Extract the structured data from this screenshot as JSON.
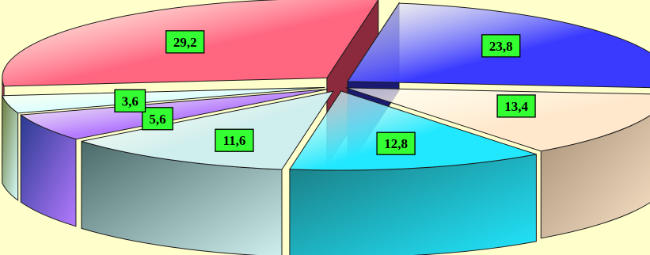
{
  "chart_data": {
    "type": "pie",
    "title": "",
    "style": "3d-exploded",
    "background": "#ffffcc",
    "label_background": "#33ff33",
    "slices": [
      {
        "label": "29,2",
        "value": 29.2,
        "color": "#ff6680",
        "side_color": "#8a2a3c"
      },
      {
        "label": "23,8",
        "value": 23.8,
        "color": "#3a3aff",
        "side_color": "#1a1a70"
      },
      {
        "label": "13,4",
        "value": 13.4,
        "color": "#ffe8cc",
        "side_color": "#a08a70"
      },
      {
        "label": "12,8",
        "value": 12.8,
        "color": "#22e8ff",
        "side_color": "#1a7a80"
      },
      {
        "label": "11,6",
        "value": 11.6,
        "color": "#cfeeee",
        "side_color": "#4a6a6a"
      },
      {
        "label": "5,6",
        "value": 5.6,
        "color": "#b47aff",
        "side_color": "#2a3a90"
      },
      {
        "label": "3,6",
        "value": 3.6,
        "color": "#d8ffff",
        "side_color": "#6a7a3a"
      }
    ]
  }
}
